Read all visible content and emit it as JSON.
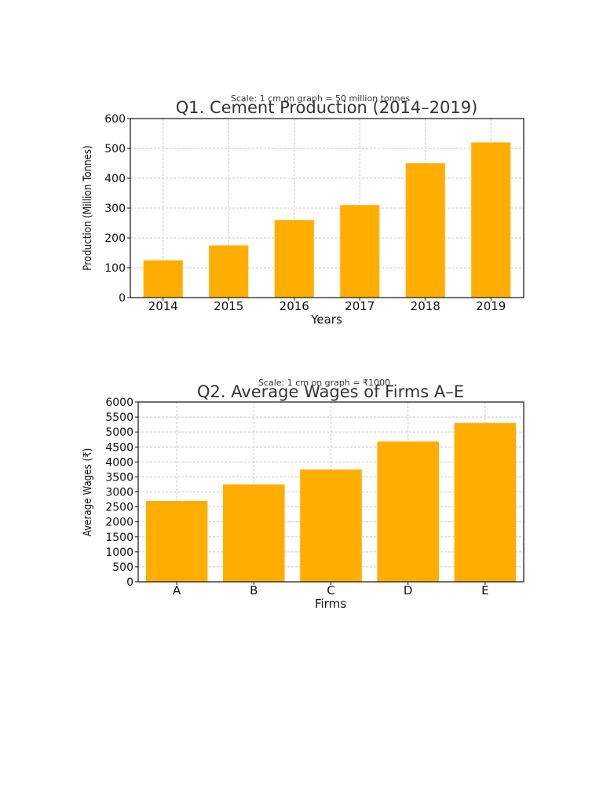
{
  "chart_data": [
    {
      "type": "bar",
      "title": "Q1. Cement Production (2014–2019)",
      "subtitle": "Scale: 1 cm on graph = 50 million tonnes",
      "xlabel": "Years",
      "ylabel": "Production (Million Tonnes)",
      "categories": [
        "2014",
        "2015",
        "2016",
        "2017",
        "2018",
        "2019"
      ],
      "values": [
        125,
        175,
        260,
        310,
        450,
        520
      ],
      "ylim": [
        0,
        600
      ],
      "yticks": [
        "0",
        "100",
        "200",
        "300",
        "400",
        "500",
        "600"
      ],
      "grid": true,
      "bar_color": "#ffae00"
    },
    {
      "type": "bar",
      "title": "Q2. Average Wages of Firms A–E",
      "subtitle": "Scale: 1 cm on graph = ₹1000",
      "xlabel": "Firms",
      "ylabel": "Average Wages (₹)",
      "categories": [
        "A",
        "B",
        "C",
        "D",
        "E"
      ],
      "values": [
        2700,
        3250,
        3750,
        4680,
        5300
      ],
      "ylim": [
        0,
        6000
      ],
      "yticks": [
        "0",
        "500",
        "1000",
        "1500",
        "2000",
        "2500",
        "3000",
        "3500",
        "4000",
        "4500",
        "5000",
        "5500",
        "6000"
      ],
      "grid": true,
      "bar_color": "#ffae00"
    }
  ]
}
